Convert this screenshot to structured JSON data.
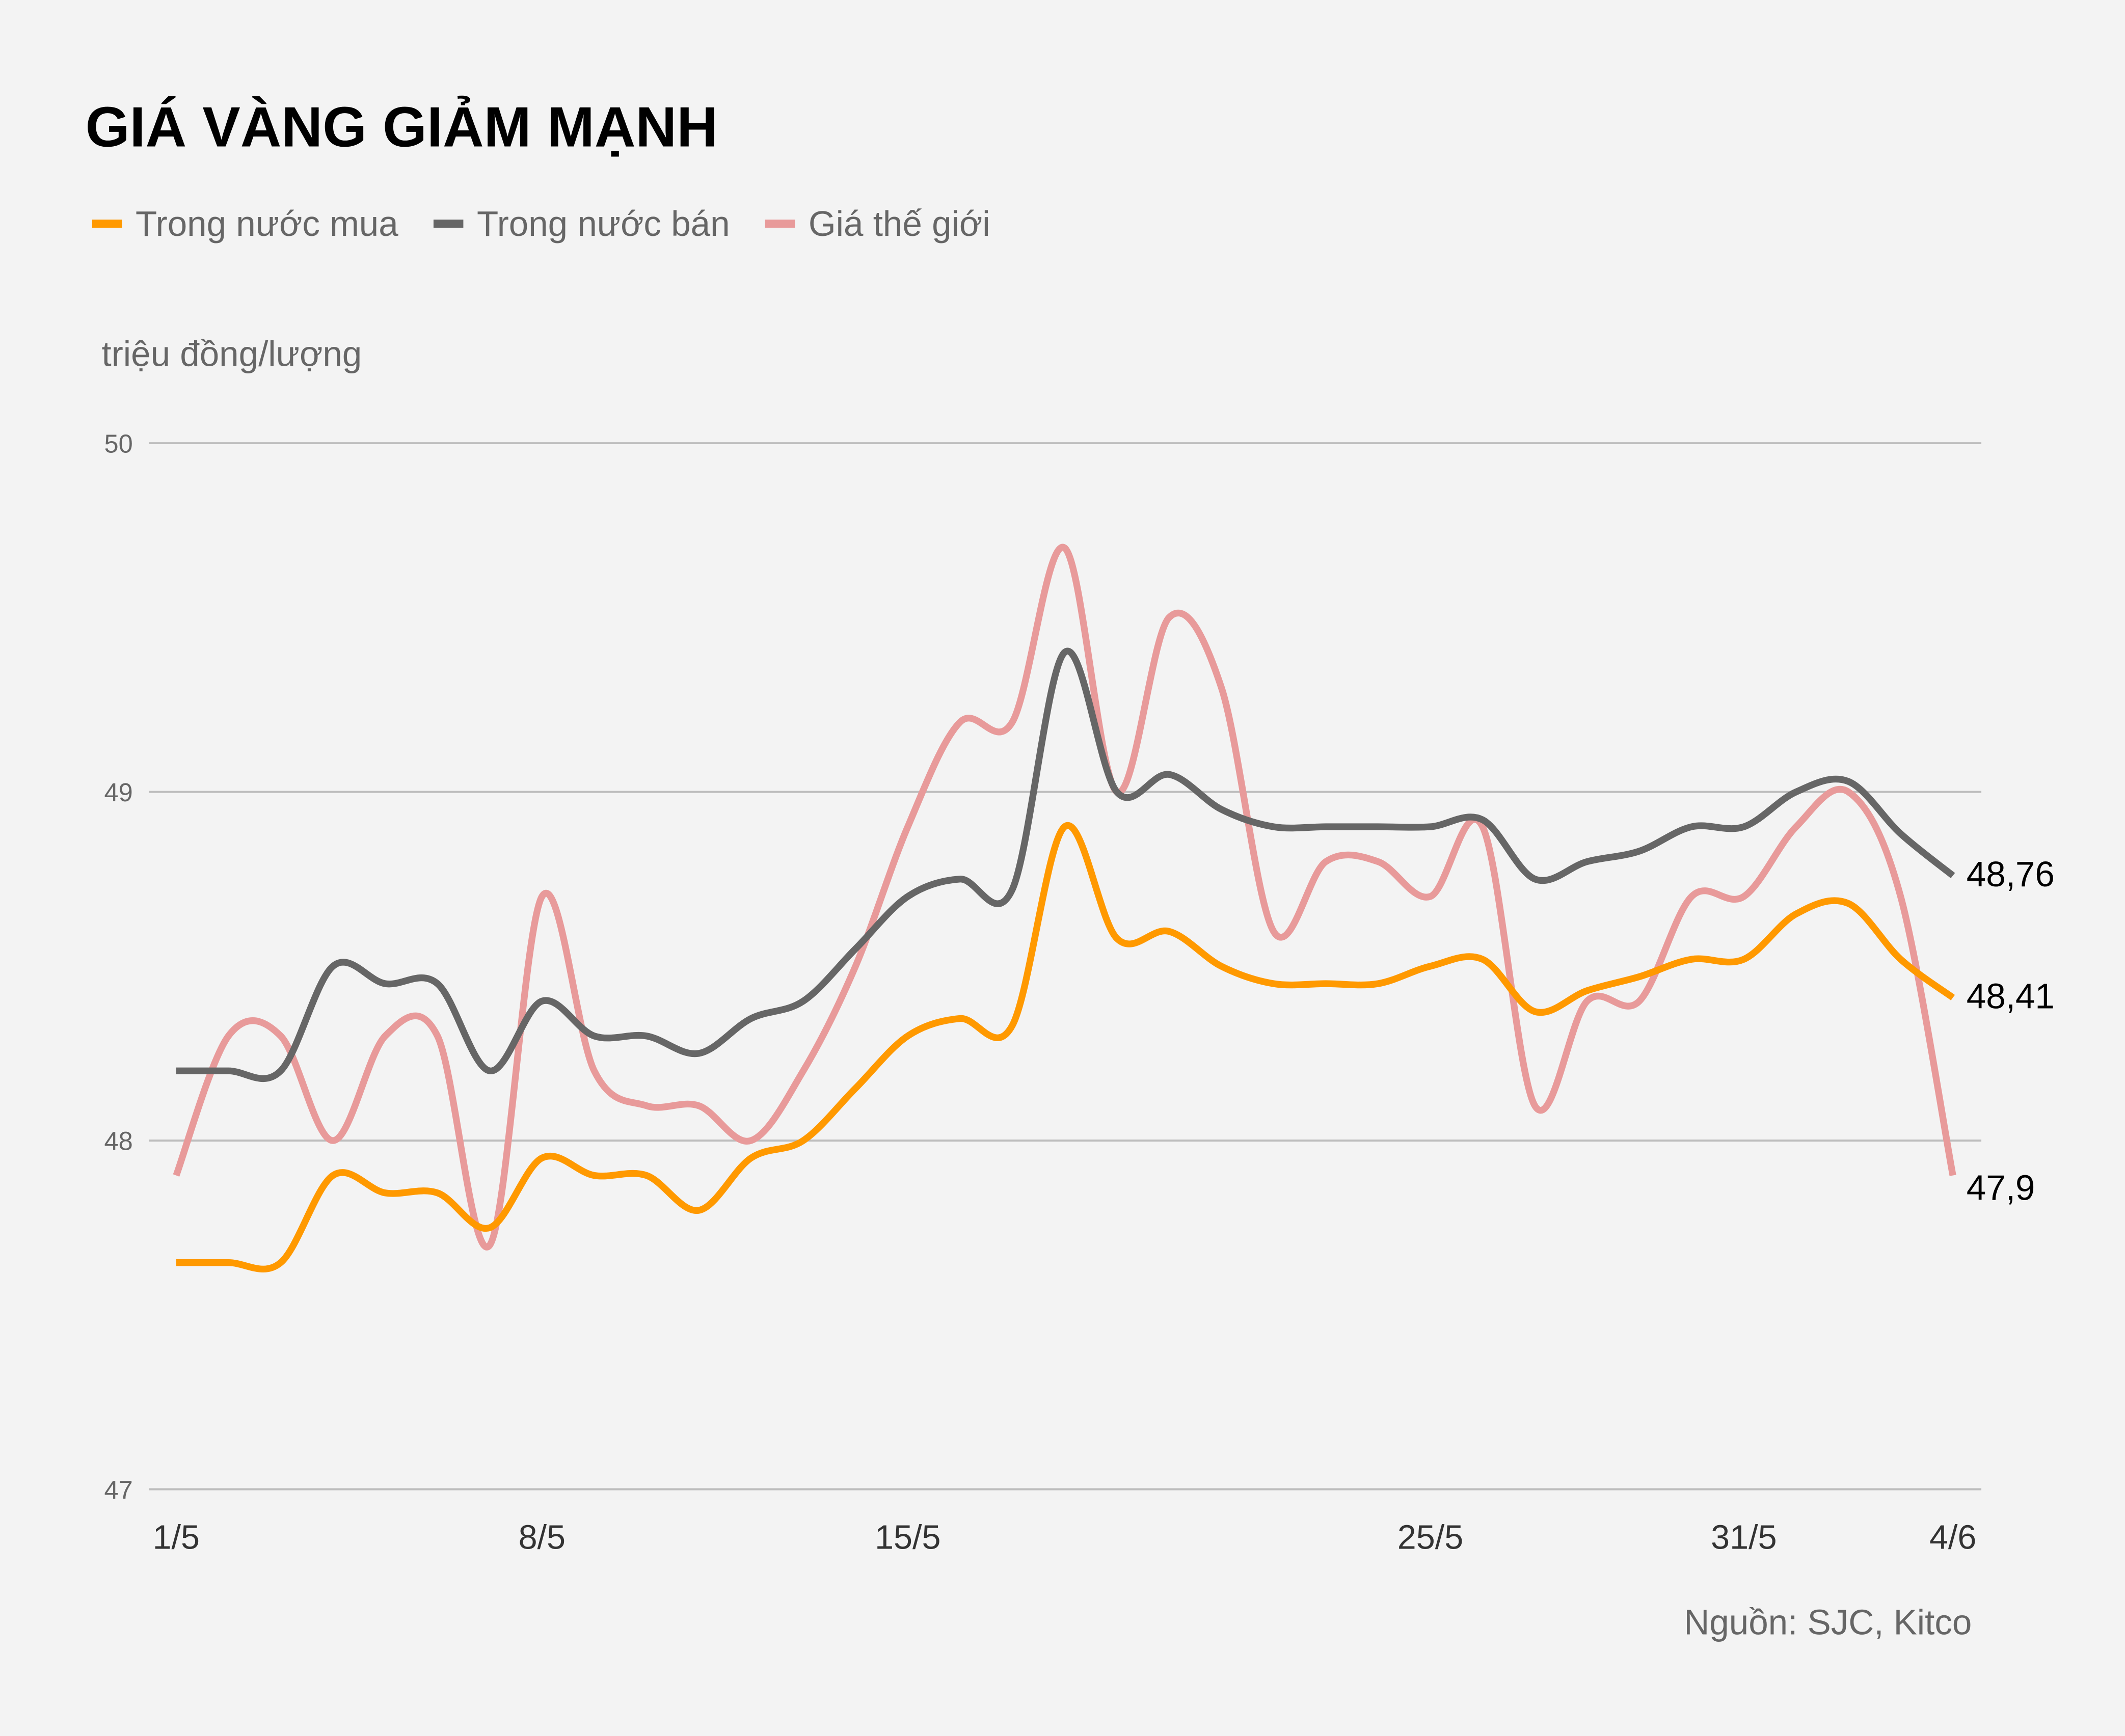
{
  "chart_data": {
    "type": "line",
    "title": "GIÁ VÀNG GIẢM MẠNH",
    "ylabel": "triệu đồng/lượng",
    "xlabel": "",
    "source": "Nguồn: SJC, Kitco",
    "ylim": [
      47,
      50
    ],
    "yticks": [
      "47",
      "48",
      "49",
      "50"
    ],
    "grid": true,
    "legend_position": "top-left",
    "x": [
      "1/5",
      "2/5",
      "3/5",
      "4/5",
      "5/5",
      "6/5",
      "7/5",
      "8/5",
      "9/5",
      "10/5",
      "11/5",
      "12/5",
      "13/5",
      "14/5",
      "15/5",
      "16/5",
      "17/5",
      "18/5",
      "19/5",
      "20/5",
      "21/5",
      "22/5",
      "23/5",
      "24/5",
      "25/5",
      "26/5",
      "27/5",
      "28/5",
      "29/5",
      "30/5",
      "31/5",
      "1/6",
      "2/6",
      "3/6",
      "4/6"
    ],
    "xtick_labels": [
      "1/5",
      "8/5",
      "15/5",
      "25/5",
      "31/5",
      "4/6"
    ],
    "series": [
      {
        "name": "Trong nước mua",
        "color": "#ff9900",
        "end_label": "48,41",
        "values": [
          47.65,
          47.65,
          47.65,
          47.9,
          47.85,
          47.85,
          47.75,
          47.95,
          47.9,
          47.9,
          47.8,
          47.95,
          48.0,
          48.15,
          48.3,
          48.35,
          48.33,
          48.9,
          48.58,
          48.6,
          48.5,
          48.45,
          48.45,
          48.45,
          48.5,
          48.52,
          48.37,
          48.43,
          48.47,
          48.52,
          48.52,
          48.65,
          48.68,
          48.52,
          48.41
        ]
      },
      {
        "name": "Trong nước bán",
        "color": "#666666",
        "end_label": "48,76",
        "values": [
          48.2,
          48.2,
          48.2,
          48.5,
          48.45,
          48.45,
          48.2,
          48.4,
          48.3,
          48.3,
          48.25,
          48.35,
          48.4,
          48.55,
          48.7,
          48.75,
          48.72,
          49.4,
          49.0,
          49.05,
          48.95,
          48.9,
          48.9,
          48.9,
          48.9,
          48.92,
          48.75,
          48.8,
          48.83,
          48.9,
          48.9,
          49.0,
          49.03,
          48.88,
          48.76
        ]
      },
      {
        "name": "Giá thế giới",
        "color": "#e89a9a",
        "end_label": "47,9",
        "values": [
          47.9,
          48.3,
          48.3,
          48.0,
          48.3,
          48.3,
          47.7,
          48.7,
          48.2,
          48.1,
          48.1,
          48.0,
          48.2,
          48.5,
          48.9,
          49.2,
          49.2,
          49.7,
          49.0,
          49.5,
          49.3,
          48.6,
          48.8,
          48.8,
          48.7,
          48.9,
          48.1,
          48.4,
          48.4,
          48.7,
          48.7,
          48.9,
          49.0,
          48.7,
          47.9
        ]
      }
    ]
  }
}
